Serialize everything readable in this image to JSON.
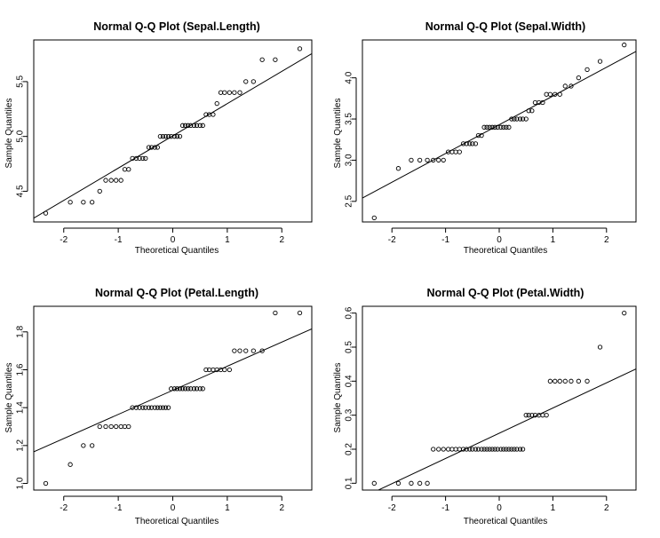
{
  "colors": {
    "background": "#ffffff",
    "ink": "#000000"
  },
  "chart_data": [
    {
      "type": "scatter",
      "title": "Normal Q-Q Plot (Sepal.Length)",
      "xlabel": "Theoretical Quantiles",
      "ylabel": "Sample Quantiles",
      "xlim": [
        -2.55,
        2.55
      ],
      "ylim": [
        4.22,
        5.88
      ],
      "xticks": [
        -2,
        -1,
        0,
        1,
        2
      ],
      "yticks": [
        4.5,
        5.0,
        5.5
      ],
      "marker": "open-circle",
      "reference_line": {
        "x": [
          -2.55,
          2.55
        ],
        "y": [
          4.255,
          5.755
        ]
      },
      "x": [
        -2.33,
        -1.88,
        -1.64,
        -1.48,
        -1.34,
        -1.23,
        -1.13,
        -1.04,
        -0.95,
        -0.88,
        -0.81,
        -0.74,
        -0.67,
        -0.61,
        -0.55,
        -0.5,
        -0.44,
        -0.39,
        -0.33,
        -0.28,
        -0.23,
        -0.18,
        -0.13,
        -0.08,
        -0.03,
        0.03,
        0.08,
        0.13,
        0.18,
        0.23,
        0.28,
        0.33,
        0.39,
        0.44,
        0.5,
        0.55,
        0.61,
        0.67,
        0.74,
        0.81,
        0.88,
        0.95,
        1.04,
        1.13,
        1.23,
        1.34,
        1.48,
        1.64,
        1.88,
        2.33
      ],
      "y": [
        4.3,
        4.4,
        4.4,
        4.4,
        4.5,
        4.6,
        4.6,
        4.6,
        4.6,
        4.7,
        4.7,
        4.8,
        4.8,
        4.8,
        4.8,
        4.8,
        4.9,
        4.9,
        4.9,
        4.9,
        5.0,
        5.0,
        5.0,
        5.0,
        5.0,
        5.0,
        5.0,
        5.0,
        5.1,
        5.1,
        5.1,
        5.1,
        5.1,
        5.1,
        5.1,
        5.1,
        5.2,
        5.2,
        5.2,
        5.3,
        5.4,
        5.4,
        5.4,
        5.4,
        5.4,
        5.5,
        5.5,
        5.7,
        5.7,
        5.8
      ]
    },
    {
      "type": "scatter",
      "title": "Normal Q-Q Plot (Sepal.Width)",
      "xlabel": "Theoretical Quantiles",
      "ylabel": "Sample Quantiles",
      "xlim": [
        -2.55,
        2.55
      ],
      "ylim": [
        2.25,
        4.46
      ],
      "xticks": [
        -2,
        -1,
        0,
        1,
        2
      ],
      "yticks": [
        2.5,
        3.0,
        3.5,
        4.0
      ],
      "marker": "open-circle",
      "reference_line": {
        "x": [
          -2.55,
          2.55
        ],
        "y": [
          2.54,
          4.32
        ]
      },
      "x": [
        -2.33,
        -1.88,
        -1.64,
        -1.48,
        -1.34,
        -1.23,
        -1.13,
        -1.04,
        -0.95,
        -0.88,
        -0.81,
        -0.74,
        -0.67,
        -0.61,
        -0.55,
        -0.5,
        -0.44,
        -0.39,
        -0.33,
        -0.28,
        -0.23,
        -0.18,
        -0.13,
        -0.08,
        -0.03,
        0.03,
        0.08,
        0.13,
        0.18,
        0.23,
        0.28,
        0.33,
        0.39,
        0.44,
        0.5,
        0.55,
        0.61,
        0.67,
        0.74,
        0.81,
        0.88,
        0.95,
        1.04,
        1.13,
        1.23,
        1.34,
        1.48,
        1.64,
        1.88,
        2.33
      ],
      "y": [
        2.3,
        2.9,
        3.0,
        3.0,
        3.0,
        3.0,
        3.0,
        3.0,
        3.1,
        3.1,
        3.1,
        3.1,
        3.2,
        3.2,
        3.2,
        3.2,
        3.2,
        3.3,
        3.3,
        3.4,
        3.4,
        3.4,
        3.4,
        3.4,
        3.4,
        3.4,
        3.4,
        3.4,
        3.4,
        3.5,
        3.5,
        3.5,
        3.5,
        3.5,
        3.5,
        3.6,
        3.6,
        3.7,
        3.7,
        3.7,
        3.8,
        3.8,
        3.8,
        3.8,
        3.9,
        3.9,
        4.0,
        4.1,
        4.2,
        4.4
      ]
    },
    {
      "type": "scatter",
      "title": "Normal Q-Q Plot (Petal.Length)",
      "xlabel": "Theoretical Quantiles",
      "ylabel": "Sample Quantiles",
      "xlim": [
        -2.55,
        2.55
      ],
      "ylim": [
        0.965,
        1.935
      ],
      "xticks": [
        -2,
        -1,
        0,
        1,
        2
      ],
      "yticks": [
        1.0,
        1.2,
        1.4,
        1.6,
        1.8
      ],
      "marker": "open-circle",
      "reference_line": {
        "x": [
          -2.55,
          2.55
        ],
        "y": [
          1.167,
          1.816
        ]
      },
      "x": [
        -2.33,
        -1.88,
        -1.64,
        -1.48,
        -1.34,
        -1.23,
        -1.13,
        -1.04,
        -0.95,
        -0.88,
        -0.81,
        -0.74,
        -0.67,
        -0.61,
        -0.55,
        -0.5,
        -0.44,
        -0.39,
        -0.33,
        -0.28,
        -0.23,
        -0.18,
        -0.13,
        -0.08,
        -0.03,
        0.03,
        0.08,
        0.13,
        0.18,
        0.23,
        0.28,
        0.33,
        0.39,
        0.44,
        0.5,
        0.55,
        0.61,
        0.67,
        0.74,
        0.81,
        0.88,
        0.95,
        1.04,
        1.13,
        1.23,
        1.34,
        1.48,
        1.64,
        1.88,
        2.33
      ],
      "y": [
        1.0,
        1.1,
        1.2,
        1.2,
        1.3,
        1.3,
        1.3,
        1.3,
        1.3,
        1.3,
        1.3,
        1.4,
        1.4,
        1.4,
        1.4,
        1.4,
        1.4,
        1.4,
        1.4,
        1.4,
        1.4,
        1.4,
        1.4,
        1.4,
        1.5,
        1.5,
        1.5,
        1.5,
        1.5,
        1.5,
        1.5,
        1.5,
        1.5,
        1.5,
        1.5,
        1.5,
        1.6,
        1.6,
        1.6,
        1.6,
        1.6,
        1.6,
        1.6,
        1.7,
        1.7,
        1.7,
        1.7,
        1.7,
        1.9,
        1.9
      ]
    },
    {
      "type": "scatter",
      "title": "Normal Q-Q Plot (Petal.Width)",
      "xlabel": "Theoretical Quantiles",
      "ylabel": "Sample Quantiles",
      "xlim": [
        -2.55,
        2.55
      ],
      "ylim": [
        0.08,
        0.62
      ],
      "xticks": [
        -2,
        -1,
        0,
        1,
        2
      ],
      "yticks": [
        0.1,
        0.2,
        0.3,
        0.4,
        0.5,
        0.6
      ],
      "marker": "open-circle",
      "reference_line": {
        "x": [
          -2.55,
          2.55
        ],
        "y": [
          0.058,
          0.436
        ]
      },
      "x": [
        -2.33,
        -1.88,
        -1.64,
        -1.48,
        -1.34,
        -1.23,
        -1.13,
        -1.04,
        -0.95,
        -0.88,
        -0.81,
        -0.74,
        -0.67,
        -0.61,
        -0.55,
        -0.5,
        -0.44,
        -0.39,
        -0.33,
        -0.28,
        -0.23,
        -0.18,
        -0.13,
        -0.08,
        -0.03,
        0.03,
        0.08,
        0.13,
        0.18,
        0.23,
        0.28,
        0.33,
        0.39,
        0.44,
        0.5,
        0.55,
        0.61,
        0.67,
        0.74,
        0.81,
        0.88,
        0.95,
        1.04,
        1.13,
        1.23,
        1.34,
        1.48,
        1.64,
        1.88,
        2.33
      ],
      "y": [
        0.1,
        0.1,
        0.1,
        0.1,
        0.1,
        0.2,
        0.2,
        0.2,
        0.2,
        0.2,
        0.2,
        0.2,
        0.2,
        0.2,
        0.2,
        0.2,
        0.2,
        0.2,
        0.2,
        0.2,
        0.2,
        0.2,
        0.2,
        0.2,
        0.2,
        0.2,
        0.2,
        0.2,
        0.2,
        0.2,
        0.2,
        0.2,
        0.2,
        0.2,
        0.3,
        0.3,
        0.3,
        0.3,
        0.3,
        0.3,
        0.3,
        0.4,
        0.4,
        0.4,
        0.4,
        0.4,
        0.4,
        0.4,
        0.5,
        0.6
      ]
    }
  ]
}
